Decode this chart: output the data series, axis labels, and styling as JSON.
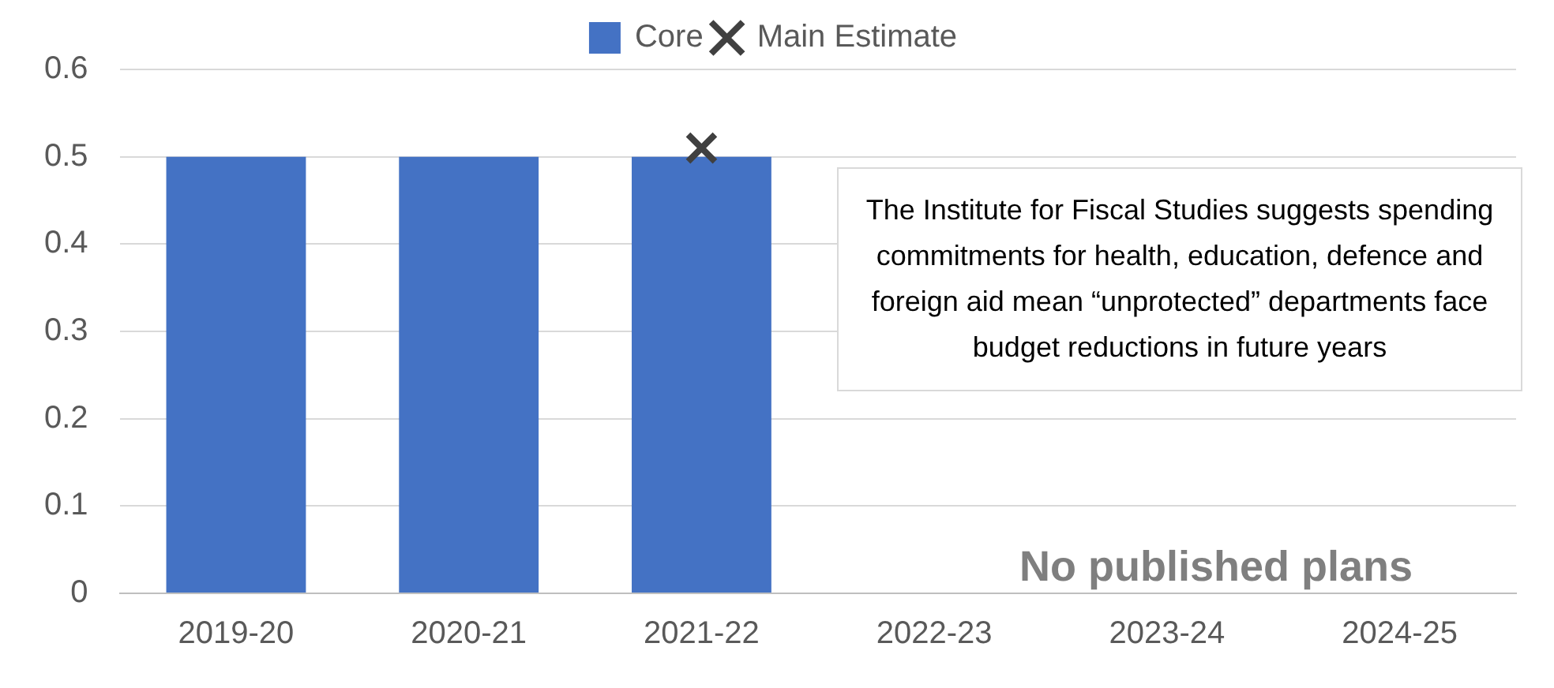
{
  "chart_data": {
    "type": "bar",
    "categories": [
      "2019-20",
      "2020-21",
      "2021-22",
      "2022-23",
      "2023-24",
      "2024-25"
    ],
    "series": [
      {
        "name": "Core",
        "color": "#4472c4",
        "values": [
          0.5,
          0.5,
          0.5,
          null,
          null,
          null
        ]
      },
      {
        "name": "Main Estimate",
        "type": "scatter",
        "color": "#404040",
        "x": [
          "2021-22"
        ],
        "values": [
          0.51
        ],
        "marker": "cross"
      }
    ],
    "ylim": [
      0,
      0.6
    ],
    "yticks": [
      0,
      0.1,
      0.2,
      0.3,
      0.4,
      0.5,
      0.6
    ],
    "grid": "y",
    "legend": "top",
    "annotations": [
      "The Institute for Fiscal Studies suggests spending commitments for health, education, defence and foreign aid mean “unprotected” departments face budget reductions in future years",
      "No published plans"
    ]
  }
}
